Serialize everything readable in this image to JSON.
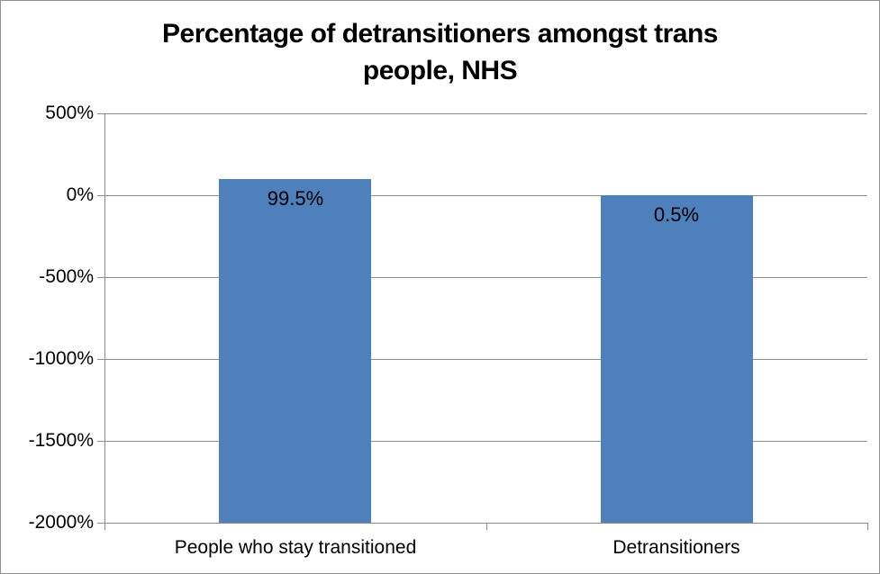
{
  "chart_data": {
    "type": "bar",
    "title": "Percentage of detransitioners amongst trans people, NHS",
    "title_lines": [
      "Percentage of detransitioners amongst trans",
      "people, NHS"
    ],
    "categories": [
      "People who stay transitioned",
      "Detransitioners"
    ],
    "values": [
      99.5,
      0.5
    ],
    "value_labels": [
      "99.5%",
      "0.5%"
    ],
    "xlabel": "",
    "ylabel": "",
    "ylim": [
      -2000,
      500
    ],
    "y_ticks": [
      {
        "label": "500%",
        "value": 500
      },
      {
        "label": "0%",
        "value": 0
      },
      {
        "label": "-500%",
        "value": -500
      },
      {
        "label": "-1000%",
        "value": -1000
      },
      {
        "label": "-1500%",
        "value": -1500
      },
      {
        "label": "-2000%",
        "value": -2000
      }
    ],
    "bar_baseline": -2000,
    "bars_start_at_axis_minimum": true,
    "bar_width_fraction": 0.4,
    "grid": true,
    "legend": "none",
    "colors": {
      "bar": "#4E80BC",
      "gridline": "#8C8C8C",
      "axis": "#8C8C8C",
      "text": "#000000",
      "background": "#FFFFFF",
      "frame_border": "#919191"
    }
  }
}
